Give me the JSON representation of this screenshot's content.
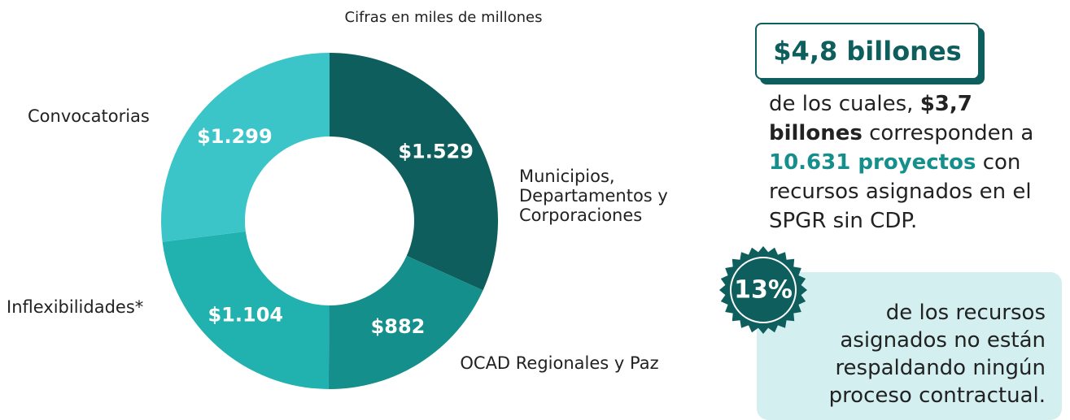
{
  "chart_data": {
    "type": "donut",
    "subtitle": "Cifras en miles de millones",
    "categories": [
      "Municipios, Departamentos y Corporaciones",
      "OCAD Regionales y Paz",
      "Inflexibilidades*",
      "Convocatorias"
    ],
    "values": [
      1529,
      882,
      1104,
      1299
    ],
    "value_labels": [
      "$1.529",
      "$882",
      "$1.104",
      "$1.299"
    ],
    "colors": [
      "#0d5e5c",
      "#148f8b",
      "#21b1ae",
      "#3cc5c8"
    ]
  },
  "highlight": {
    "total": "$4,8 billones",
    "text": [
      "de los cuales, ",
      "$3,7 billones",
      " corresponden a ",
      "10.631 proyectos",
      " con recursos asignados en el SPGR sin CDP."
    ]
  },
  "badge": {
    "value": "13%",
    "text": "de los recursos asignados no están respaldando ningún proceso contractual."
  }
}
